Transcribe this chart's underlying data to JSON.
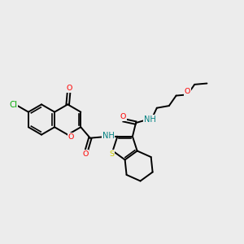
{
  "bg_color": "#ececec",
  "fig_size": [
    3.0,
    3.0
  ],
  "dpi": 100,
  "atom_colors": {
    "O": "#ff0000",
    "N": "#008080",
    "S": "#cccc00",
    "Cl": "#00aa00",
    "C": "black",
    "H": "black"
  },
  "bond_lw": 1.4,
  "font_size": 6.8
}
